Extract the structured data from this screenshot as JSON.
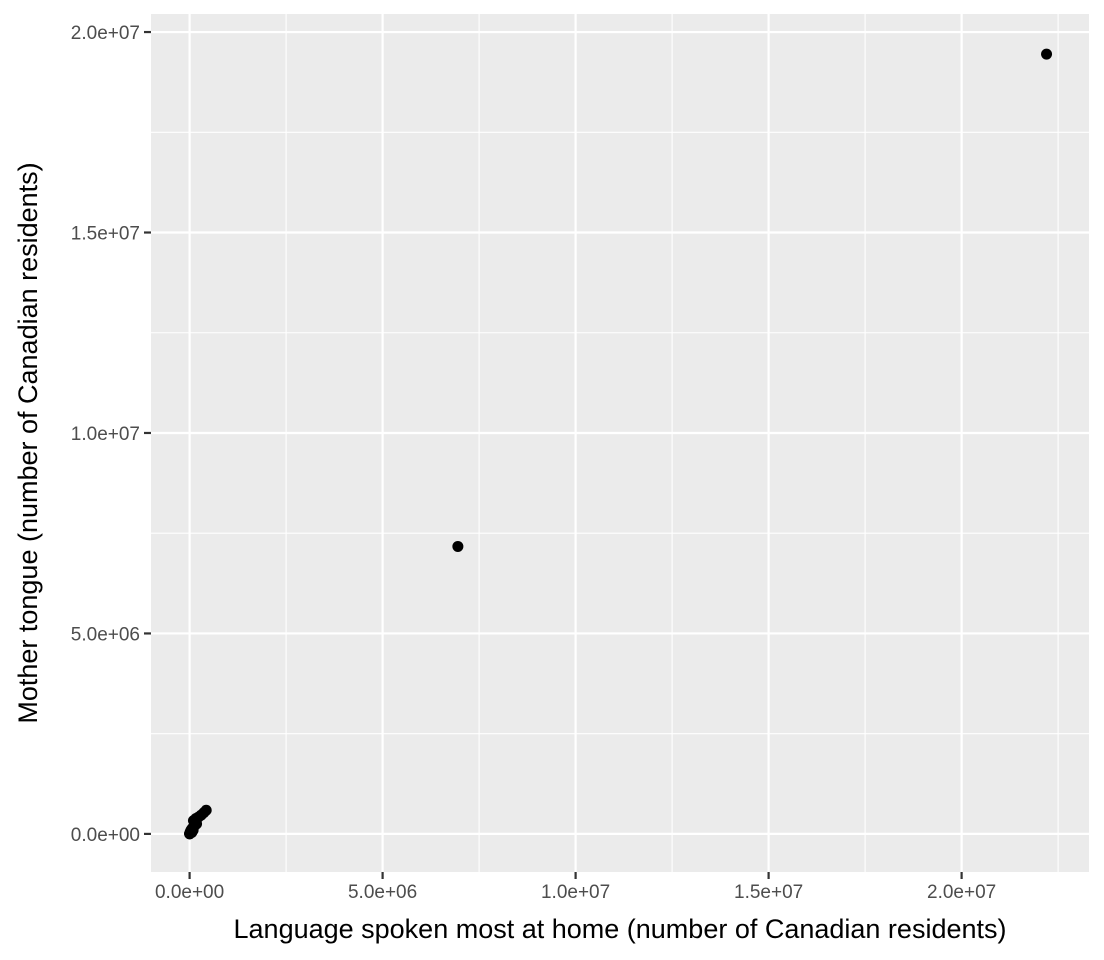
{
  "chart_data": {
    "type": "scatter",
    "title": "",
    "xlabel": "Language spoken most at home (number of Canadian residents)",
    "ylabel": "Mother tongue (number of Canadian residents)",
    "xlim": [
      -1000000,
      23300000
    ],
    "ylim": [
      -950000,
      20450000
    ],
    "x_ticks": [
      0,
      5000000,
      10000000,
      15000000,
      20000000
    ],
    "x_tick_labels": [
      "0.0e+00",
      "5.0e+06",
      "1.0e+07",
      "1.5e+07",
      "2.0e+07"
    ],
    "y_ticks": [
      0,
      5000000,
      10000000,
      15000000,
      20000000
    ],
    "y_tick_labels": [
      "0.0e+00",
      "5.0e+06",
      "1.0e+07",
      "1.5e+07",
      "2.0e+07"
    ],
    "grid": true,
    "legend": "none",
    "colors": {
      "panel": "#ebebeb",
      "grid": "#ffffff",
      "point": "#000000",
      "tick_text": "#4d4d4d",
      "tick_mark": "#333333"
    },
    "points": [
      {
        "x": 22200000,
        "y": 19450000
      },
      {
        "x": 6950000,
        "y": 7170000
      },
      {
        "x": 430000,
        "y": 590000
      },
      {
        "x": 370000,
        "y": 530000
      },
      {
        "x": 300000,
        "y": 470000
      },
      {
        "x": 230000,
        "y": 420000
      },
      {
        "x": 160000,
        "y": 380000
      },
      {
        "x": 100000,
        "y": 330000
      },
      {
        "x": 180000,
        "y": 250000
      },
      {
        "x": 120000,
        "y": 190000
      },
      {
        "x": 70000,
        "y": 140000
      },
      {
        "x": 40000,
        "y": 100000
      },
      {
        "x": 20000,
        "y": 60000
      },
      {
        "x": 10000,
        "y": 30000
      },
      {
        "x": 5000,
        "y": 10000
      },
      {
        "x": 60000,
        "y": 40000
      },
      {
        "x": 90000,
        "y": 90000
      },
      {
        "x": 2000,
        "y": 3000
      },
      {
        "x": 1000,
        "y": 1000
      },
      {
        "x": 3000,
        "y": 6000
      },
      {
        "x": 8000,
        "y": 15000
      },
      {
        "x": 15000,
        "y": 20000
      },
      {
        "x": 30000,
        "y": 50000
      },
      {
        "x": 50000,
        "y": 80000
      }
    ]
  }
}
